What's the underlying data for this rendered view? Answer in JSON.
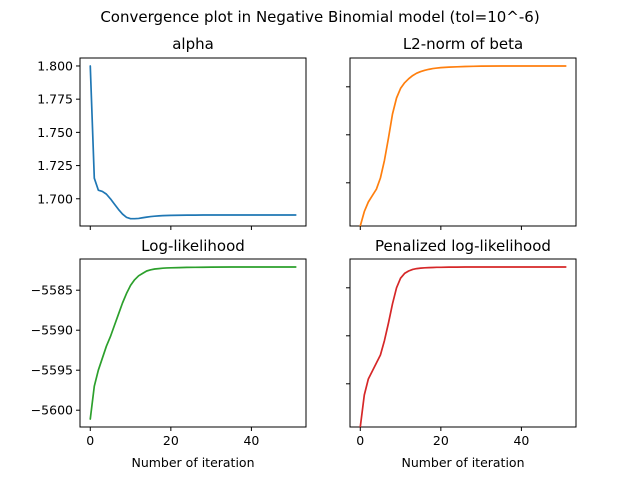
{
  "title": "Convergence plot in Negative Binomial model (tol=10^-6)",
  "chart_data": [
    {
      "type": "line",
      "title": "alpha",
      "xlabel": "",
      "ylabel": "",
      "xlim": [
        -2.55,
        53.55
      ],
      "ylim": [
        1.6795,
        1.806
      ],
      "xticks": [
        0,
        20,
        40
      ],
      "xtick_labels": [
        "",
        "",
        ""
      ],
      "yticks": [
        1.7,
        1.725,
        1.75,
        1.775,
        1.8
      ],
      "ytick_labels": [
        "1.700",
        "1.725",
        "1.750",
        "1.775",
        "1.800"
      ],
      "color": "#1f77b4",
      "x": [
        0,
        1,
        2,
        3,
        4,
        5,
        6,
        7,
        8,
        9,
        10,
        11,
        12,
        13,
        14,
        15,
        16,
        17,
        18,
        19,
        20,
        22,
        24,
        26,
        28,
        30,
        35,
        40,
        45,
        51
      ],
      "y": [
        1.8,
        1.7155,
        1.7065,
        1.7055,
        1.7035,
        1.7,
        1.696,
        1.692,
        1.6885,
        1.686,
        1.685,
        1.685,
        1.6852,
        1.6857,
        1.6862,
        1.6866,
        1.6869,
        1.6871,
        1.6873,
        1.6874,
        1.6875,
        1.6876,
        1.6877,
        1.6877,
        1.6878,
        1.6878,
        1.6878,
        1.6878,
        1.6878,
        1.6878
      ]
    },
    {
      "type": "line",
      "title": "L2-norm of beta",
      "xlabel": "",
      "ylabel": "",
      "xlim": [
        -2.55,
        53.55
      ],
      "ylim": [
        0,
        1.05
      ],
      "xticks": [
        0,
        20,
        40
      ],
      "xtick_labels": [
        "",
        "",
        ""
      ],
      "yticks": [
        0.27,
        0.57,
        0.87
      ],
      "ytick_labels": [
        "",
        "",
        ""
      ],
      "color": "#ff7f0e",
      "x": [
        0,
        1,
        2,
        3,
        4,
        5,
        6,
        7,
        8,
        9,
        10,
        11,
        12,
        13,
        14,
        15,
        16,
        17,
        18,
        19,
        20,
        22,
        24,
        26,
        28,
        30,
        35,
        40,
        45,
        51
      ],
      "y": [
        0.0,
        0.09,
        0.15,
        0.19,
        0.23,
        0.3,
        0.41,
        0.55,
        0.7,
        0.8,
        0.86,
        0.895,
        0.92,
        0.94,
        0.955,
        0.965,
        0.973,
        0.979,
        0.984,
        0.987,
        0.99,
        0.993,
        0.995,
        0.997,
        0.998,
        0.999,
        1.0,
        1.0,
        1.0,
        1.0
      ]
    },
    {
      "type": "line",
      "title": "Log-likelihood",
      "xlabel": "Number of iteration",
      "ylabel": "",
      "xlim": [
        -2.55,
        53.55
      ],
      "ylim": [
        -5602.1,
        -5581.1
      ],
      "xticks": [
        0,
        20,
        40
      ],
      "xtick_labels": [
        "0",
        "20",
        "40"
      ],
      "yticks": [
        -5600,
        -5595,
        -5590,
        -5585
      ],
      "ytick_labels": [
        "−5600",
        "−5595",
        "−5590",
        "−5585"
      ],
      "color": "#2ca02c",
      "x": [
        0,
        1,
        2,
        3,
        4,
        5,
        6,
        7,
        8,
        9,
        10,
        11,
        12,
        13,
        14,
        15,
        16,
        17,
        18,
        19,
        20,
        22,
        24,
        26,
        28,
        30,
        35,
        40,
        45,
        51
      ],
      "y": [
        -5601.1,
        -5597,
        -5595,
        -5593.5,
        -5592,
        -5590.8,
        -5589.4,
        -5588,
        -5586.6,
        -5585.4,
        -5584.4,
        -5583.7,
        -5583.2,
        -5582.9,
        -5582.6,
        -5582.45,
        -5582.35,
        -5582.3,
        -5582.25,
        -5582.22,
        -5582.2,
        -5582.18,
        -5582.15,
        -5582.14,
        -5582.13,
        -5582.12,
        -5582.1,
        -5582.1,
        -5582.1,
        -5582.1
      ]
    },
    {
      "type": "line",
      "title": "Penalized log-likelihood",
      "xlabel": "Number of iteration",
      "ylabel": "",
      "xlim": [
        -2.55,
        53.55
      ],
      "ylim": [
        0,
        1.05
      ],
      "xticks": [
        0,
        20,
        40
      ],
      "xtick_labels": [
        "0",
        "20",
        "40"
      ],
      "yticks": [
        0.27,
        0.57,
        0.87
      ],
      "ytick_labels": [
        "",
        "",
        ""
      ],
      "color": "#d62728",
      "x": [
        0,
        1,
        2,
        3,
        4,
        5,
        6,
        7,
        8,
        9,
        10,
        11,
        12,
        13,
        14,
        15,
        16,
        17,
        18,
        19,
        20,
        22,
        24,
        26,
        28,
        30,
        35,
        40,
        45,
        51
      ],
      "y": [
        0.0,
        0.2,
        0.3,
        0.35,
        0.4,
        0.45,
        0.54,
        0.65,
        0.77,
        0.87,
        0.93,
        0.96,
        0.975,
        0.985,
        0.99,
        0.993,
        0.995,
        0.996,
        0.997,
        0.998,
        0.998,
        0.999,
        0.999,
        1.0,
        1.0,
        1.0,
        1.0,
        1.0,
        1.0,
        1.0
      ]
    }
  ]
}
